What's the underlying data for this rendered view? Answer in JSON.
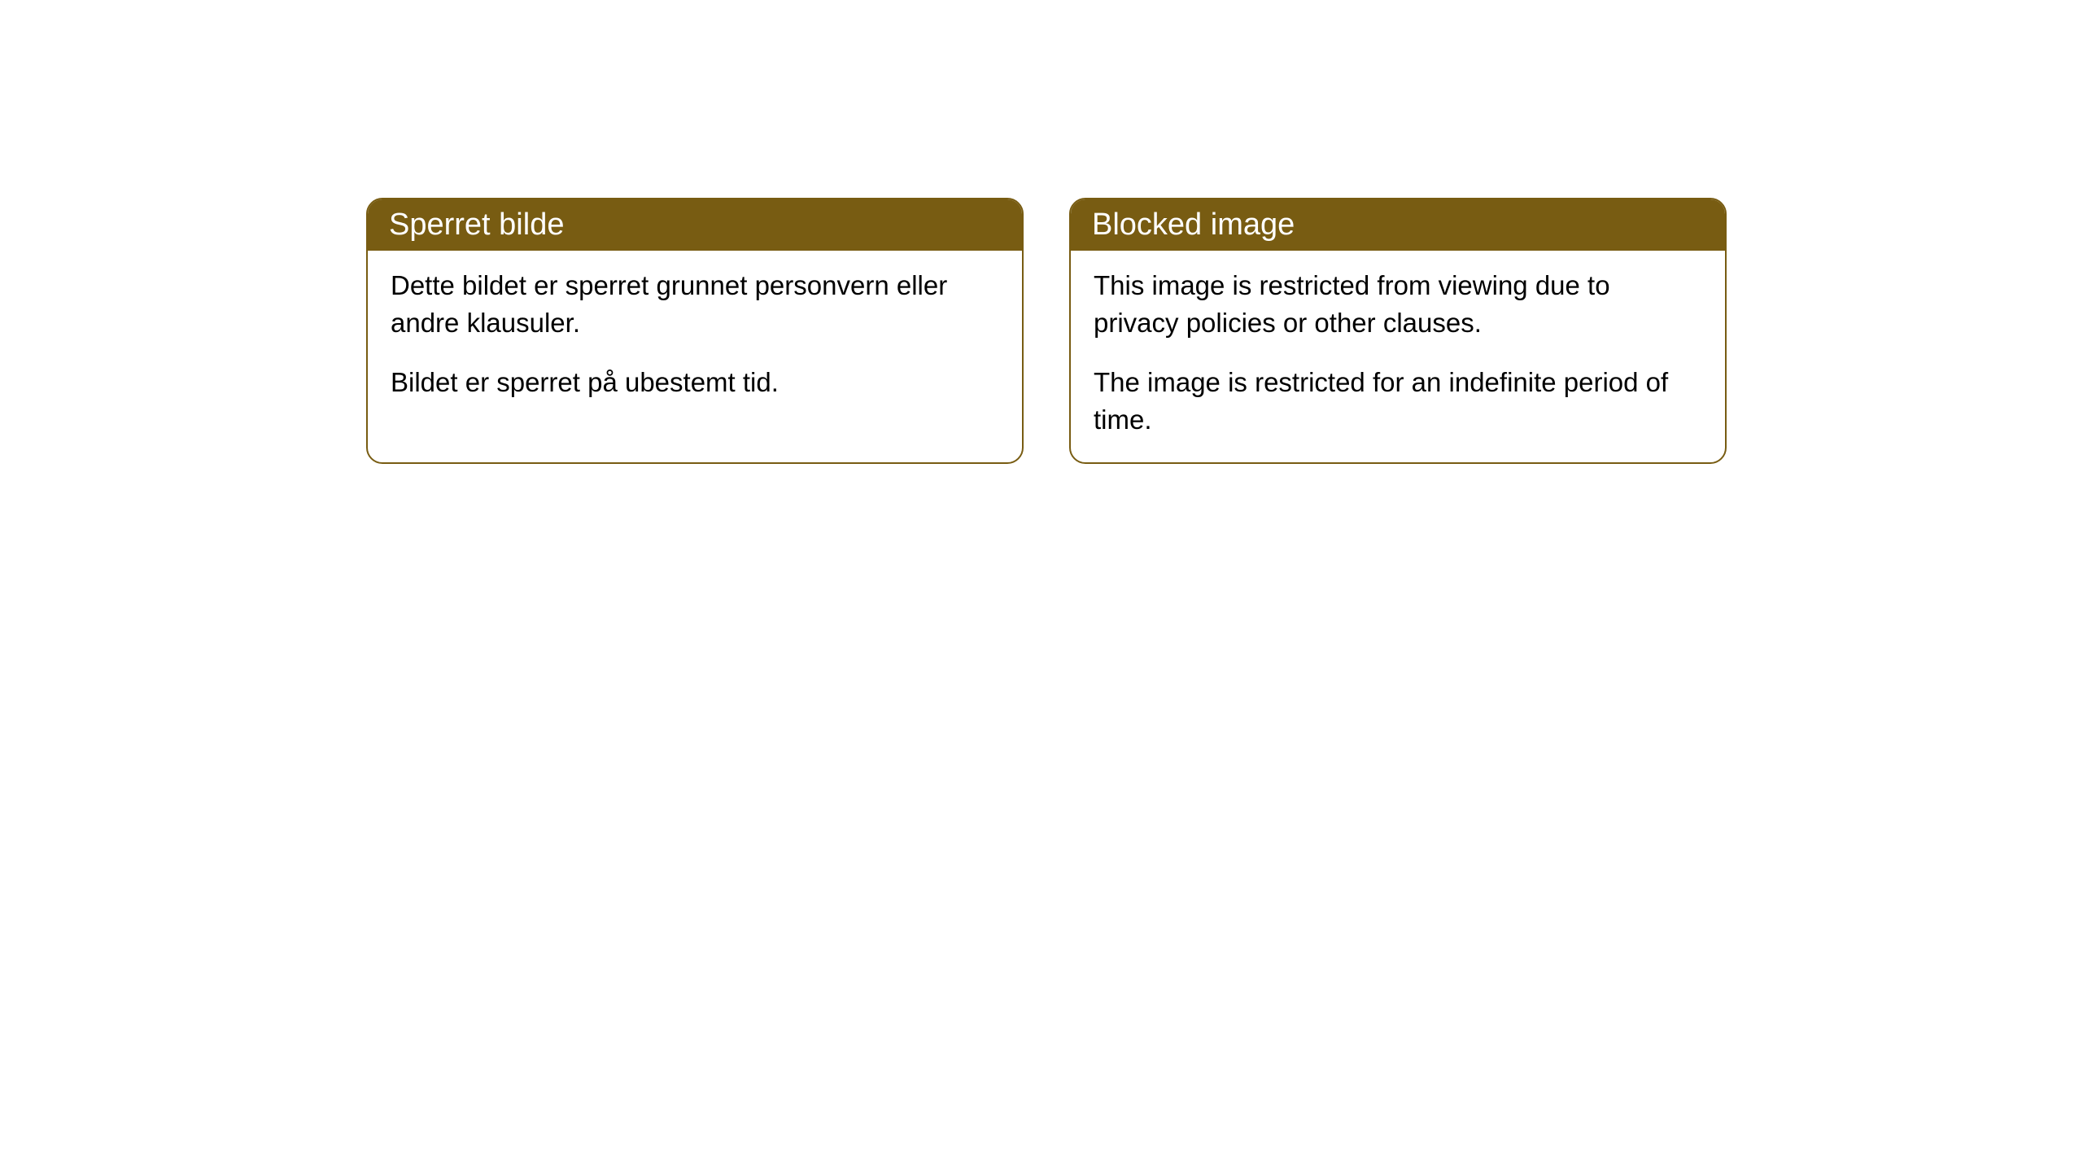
{
  "cards": [
    {
      "title": "Sperret bilde",
      "paragraph1": "Dette bildet er sperret grunnet personvern eller andre klausuler.",
      "paragraph2": "Bildet er sperret på ubestemt tid."
    },
    {
      "title": "Blocked image",
      "paragraph1": "This image is restricted from viewing due to privacy policies or other clauses.",
      "paragraph2": "The image is restricted for an indefinite period of time."
    }
  ],
  "style": {
    "header_bg_color": "#785c12",
    "header_text_color": "#ffffff",
    "border_color": "#785c12",
    "body_bg_color": "#ffffff",
    "body_text_color": "#000000",
    "border_radius": 20,
    "header_fontsize": 38,
    "body_fontsize": 33
  }
}
